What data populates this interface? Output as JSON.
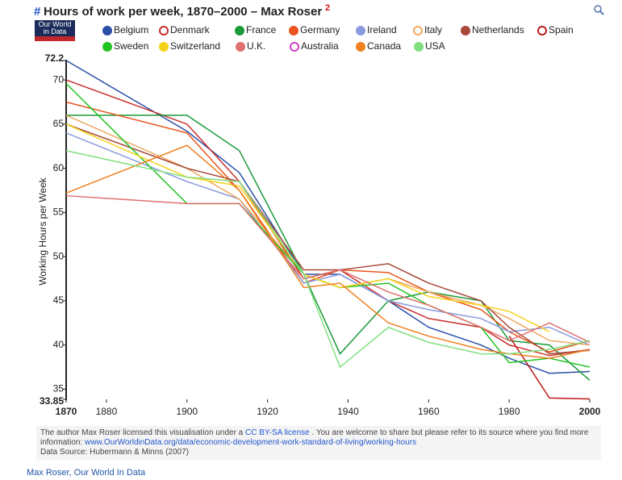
{
  "chart_data": {
    "type": "line",
    "title": "Hours of work per week, 1870–2000 – Max Roser",
    "title_hash": "#",
    "title_superscript": "2",
    "logo": "Our World in Data",
    "y_label": "Working Hours per Week",
    "x": [
      1870,
      1900,
      1913,
      1929,
      1938,
      1950,
      1960,
      1973,
      1980,
      1990,
      2000
    ],
    "xlim": [
      1870,
      2000
    ],
    "xticks": [
      1870,
      1880,
      1900,
      1920,
      1940,
      1960,
      1980,
      2000
    ],
    "ylim": [
      33.85,
      72.2
    ],
    "yticks": [
      33.85,
      35,
      40,
      45,
      50,
      55,
      60,
      65,
      70,
      72.2
    ],
    "series": [
      {
        "name": "Belgium",
        "color": "#2a4fa8",
        "marker": "filled",
        "values": [
          72.2,
          64.2,
          59.5,
          48,
          48,
          45,
          42,
          40,
          38.5,
          36.8,
          37
        ]
      },
      {
        "name": "Denmark",
        "color": "#c9302c",
        "marker": "hollow",
        "values": [
          70,
          65,
          58.5,
          47.5,
          48.5,
          45,
          43,
          42,
          40,
          38.8,
          39.5
        ]
      },
      {
        "name": "France",
        "color": "#1a9a3a",
        "marker": "filled",
        "values": [
          66,
          66,
          62,
          48,
          39,
          45,
          46,
          45,
          40.5,
          40,
          36
        ]
      },
      {
        "name": "Germany",
        "color": "#e8541c",
        "marker": "filled",
        "values": [
          67.5,
          64,
          57.5,
          47,
          48.5,
          48.2,
          46,
          44,
          41.5,
          39.2,
          40.5
        ]
      },
      {
        "name": "Ireland",
        "color": "#8a9ae0",
        "marker": "filled",
        "values": [
          64,
          58.5,
          56.5,
          47,
          48,
          45,
          44,
          43,
          41.5,
          42,
          40
        ]
      },
      {
        "name": "Italy",
        "color": "#f0a860",
        "marker": "hollow",
        "values": [
          66,
          60,
          56.5,
          48,
          46.5,
          47.5,
          46,
          44.5,
          43,
          40.5,
          40
        ]
      },
      {
        "name": "Netherlands",
        "color": "#a8483a",
        "marker": "filled",
        "values": [
          65,
          60,
          58.5,
          48.5,
          48.5,
          49.2,
          47,
          45,
          42,
          39,
          39.4
        ]
      },
      {
        "name": "Spain",
        "color": "#c01818",
        "marker": "hollow",
        "values": [
          null,
          null,
          null,
          null,
          null,
          null,
          null,
          null,
          41,
          34,
          33.9
        ]
      },
      {
        "name": "Sweden",
        "color": "#22c422",
        "marker": "filled",
        "values": [
          69.6,
          56,
          56,
          48,
          46.5,
          47,
          44.5,
          42,
          38,
          38.5,
          37.5
        ]
      },
      {
        "name": "Switzerland",
        "color": "#f5d21a",
        "marker": "filled",
        "values": [
          65,
          59,
          58,
          48,
          46.5,
          47.5,
          45.5,
          44.5,
          43.8,
          41.5,
          null
        ]
      },
      {
        "name": "U.K.",
        "color": "#e07070",
        "marker": "filled",
        "values": [
          56.9,
          56,
          56,
          47.5,
          48.5,
          46,
          44.5,
          42,
          40.5,
          42.5,
          40.3
        ]
      },
      {
        "name": "Australia",
        "color": "#d040c0",
        "marker": "hollow",
        "values": [
          null,
          null,
          null,
          null,
          null,
          null,
          null,
          null,
          null,
          null,
          null
        ]
      },
      {
        "name": "Canada",
        "color": "#f08020",
        "marker": "filled",
        "values": [
          57.2,
          62.6,
          57.5,
          46.5,
          47,
          42.5,
          41,
          39.5,
          39,
          38.5,
          39.5
        ]
      },
      {
        "name": "USA",
        "color": "#80e080",
        "marker": "filled",
        "values": [
          62,
          59,
          58.5,
          48,
          37.5,
          42,
          40.3,
          39,
          39,
          39.5,
          40.5
        ]
      }
    ],
    "footer": {
      "text1": "The author Max Roser licensed this visualisation under a",
      "license": "CC BY-SA license",
      "text2": ". You are welcome to share but please refer to its source where you find more information:",
      "url": "www.OurWorldinData.org/data/economic-development-work-standard-of-living/working-hours",
      "source": "Data Source: Hubermann & Minns (2007)"
    },
    "credit": "Max Roser, Our World In Data"
  }
}
